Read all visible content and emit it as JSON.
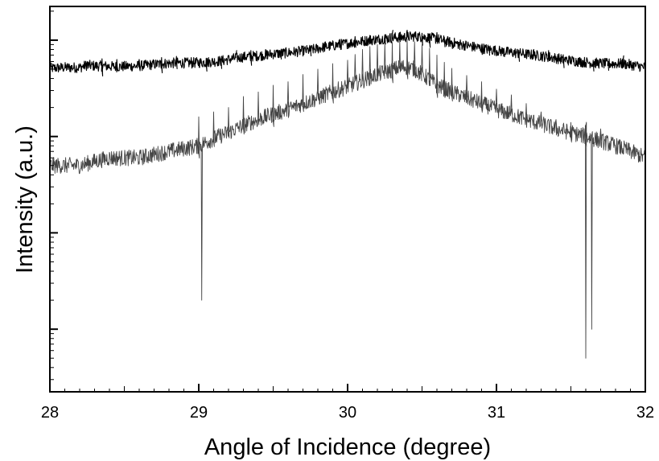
{
  "chart_data": {
    "type": "line",
    "title": "",
    "xlabel": "Angle of Incidence (degree)",
    "ylabel": "Intensity (a.u.)",
    "xlim": [
      28,
      32
    ],
    "xticks": [
      28,
      29,
      30,
      31,
      32
    ],
    "y_scale": "log",
    "y_tick_labels_shown": false,
    "grid": false,
    "legend": "none",
    "series": [
      {
        "color": "#000000",
        "x": [
          28.0,
          28.1,
          28.2,
          28.25,
          28.3,
          28.35,
          28.45,
          28.6,
          28.75,
          28.85,
          28.95,
          29.05,
          29.15,
          29.25,
          29.3,
          29.4,
          29.5,
          29.6,
          29.75,
          29.85,
          29.95,
          30.05,
          30.15,
          30.25,
          30.3,
          30.35,
          30.4,
          30.45,
          30.5,
          30.55,
          30.6,
          30.65,
          30.75,
          30.85,
          30.95,
          31.05,
          31.15,
          31.25,
          31.35,
          31.45,
          31.55,
          31.65,
          31.75,
          31.85,
          31.95,
          32.0
        ],
        "values": [
          0.51,
          0.52,
          0.52,
          0.55,
          0.54,
          0.54,
          0.53,
          0.54,
          0.57,
          0.58,
          0.58,
          0.59,
          0.61,
          0.65,
          0.67,
          0.69,
          0.72,
          0.74,
          0.79,
          0.85,
          0.9,
          0.95,
          1.0,
          1.04,
          1.06,
          1.07,
          1.08,
          1.1,
          1.08,
          1.06,
          1.03,
          0.98,
          0.91,
          0.85,
          0.8,
          0.76,
          0.73,
          0.7,
          0.67,
          0.63,
          0.6,
          0.58,
          0.57,
          0.57,
          0.54,
          0.52
        ],
        "sharp_peaks": {
          "x": [
            28.25,
            28.35,
            28.45,
            28.6,
            28.75,
            28.85,
            28.95,
            29.05,
            29.15,
            29.25,
            29.35,
            29.45,
            29.55,
            29.75,
            29.85,
            29.95,
            30.05,
            30.15,
            30.2,
            30.25,
            30.3,
            30.35,
            30.4,
            30.45,
            30.5,
            30.55,
            30.6,
            30.65,
            30.7,
            30.75,
            30.85,
            30.9,
            30.95,
            31.05,
            31.15,
            31.25,
            31.3,
            31.35,
            31.45,
            31.55,
            31.65,
            31.75,
            31.85,
            31.9,
            31.95
          ],
          "values": [
            0.6,
            0.64,
            0.63,
            0.63,
            0.66,
            0.68,
            0.66,
            0.65,
            0.64,
            0.71,
            0.78,
            0.8,
            0.78,
            0.86,
            0.96,
            1.02,
            1.09,
            1.12,
            1.08,
            1.14,
            1.15,
            1.2,
            1.27,
            1.12,
            1.18,
            1.15,
            1.2,
            1.07,
            0.98,
            0.9,
            0.94,
            0.89,
            0.86,
            0.82,
            0.79,
            0.8,
            0.75,
            0.78,
            0.67,
            0.65,
            0.62,
            0.6,
            0.58,
            0.59,
            0.58
          ]
        }
      },
      {
        "color": "#444444",
        "x": [
          28.0,
          28.2,
          28.4,
          28.6,
          28.8,
          29.0,
          29.2,
          29.4,
          29.6,
          29.8,
          29.9,
          30.0,
          30.1,
          30.2,
          30.3,
          30.35,
          30.4,
          30.45,
          30.5,
          30.55,
          30.6,
          30.7,
          30.8,
          30.9,
          31.0,
          31.2,
          31.4,
          31.6,
          31.8,
          32.0
        ],
        "values": [
          0.05,
          0.05,
          0.06,
          0.06,
          0.07,
          0.08,
          0.11,
          0.15,
          0.19,
          0.25,
          0.29,
          0.33,
          0.38,
          0.44,
          0.49,
          0.52,
          0.53,
          0.5,
          0.44,
          0.39,
          0.34,
          0.29,
          0.25,
          0.22,
          0.19,
          0.15,
          0.12,
          0.1,
          0.08,
          0.06
        ],
        "sharp_peaks": {
          "x": [
            29.0,
            29.1,
            29.2,
            29.3,
            29.4,
            29.5,
            29.6,
            29.7,
            29.8,
            29.9,
            30.0,
            30.05,
            30.1,
            30.15,
            30.2,
            30.25,
            30.3,
            30.35,
            30.4,
            30.45,
            30.5,
            30.55,
            30.6,
            30.65,
            30.7,
            30.8,
            30.9,
            31.0,
            31.1,
            31.2,
            31.3,
            31.4,
            31.5,
            31.6,
            31.7
          ],
          "values": [
            0.16,
            0.18,
            0.2,
            0.26,
            0.29,
            0.34,
            0.37,
            0.44,
            0.5,
            0.57,
            0.62,
            0.71,
            0.8,
            0.86,
            0.9,
            0.94,
            0.95,
            0.99,
            1.02,
            0.96,
            0.9,
            0.82,
            0.7,
            0.59,
            0.51,
            0.43,
            0.37,
            0.31,
            0.27,
            0.22,
            0.18,
            0.15,
            0.14,
            0.13,
            0.12
          ]
        },
        "dips": {
          "x": [
            29.02,
            31.6,
            31.64
          ],
          "values": [
            0.002,
            0.0005,
            0.001
          ]
        }
      }
    ]
  }
}
